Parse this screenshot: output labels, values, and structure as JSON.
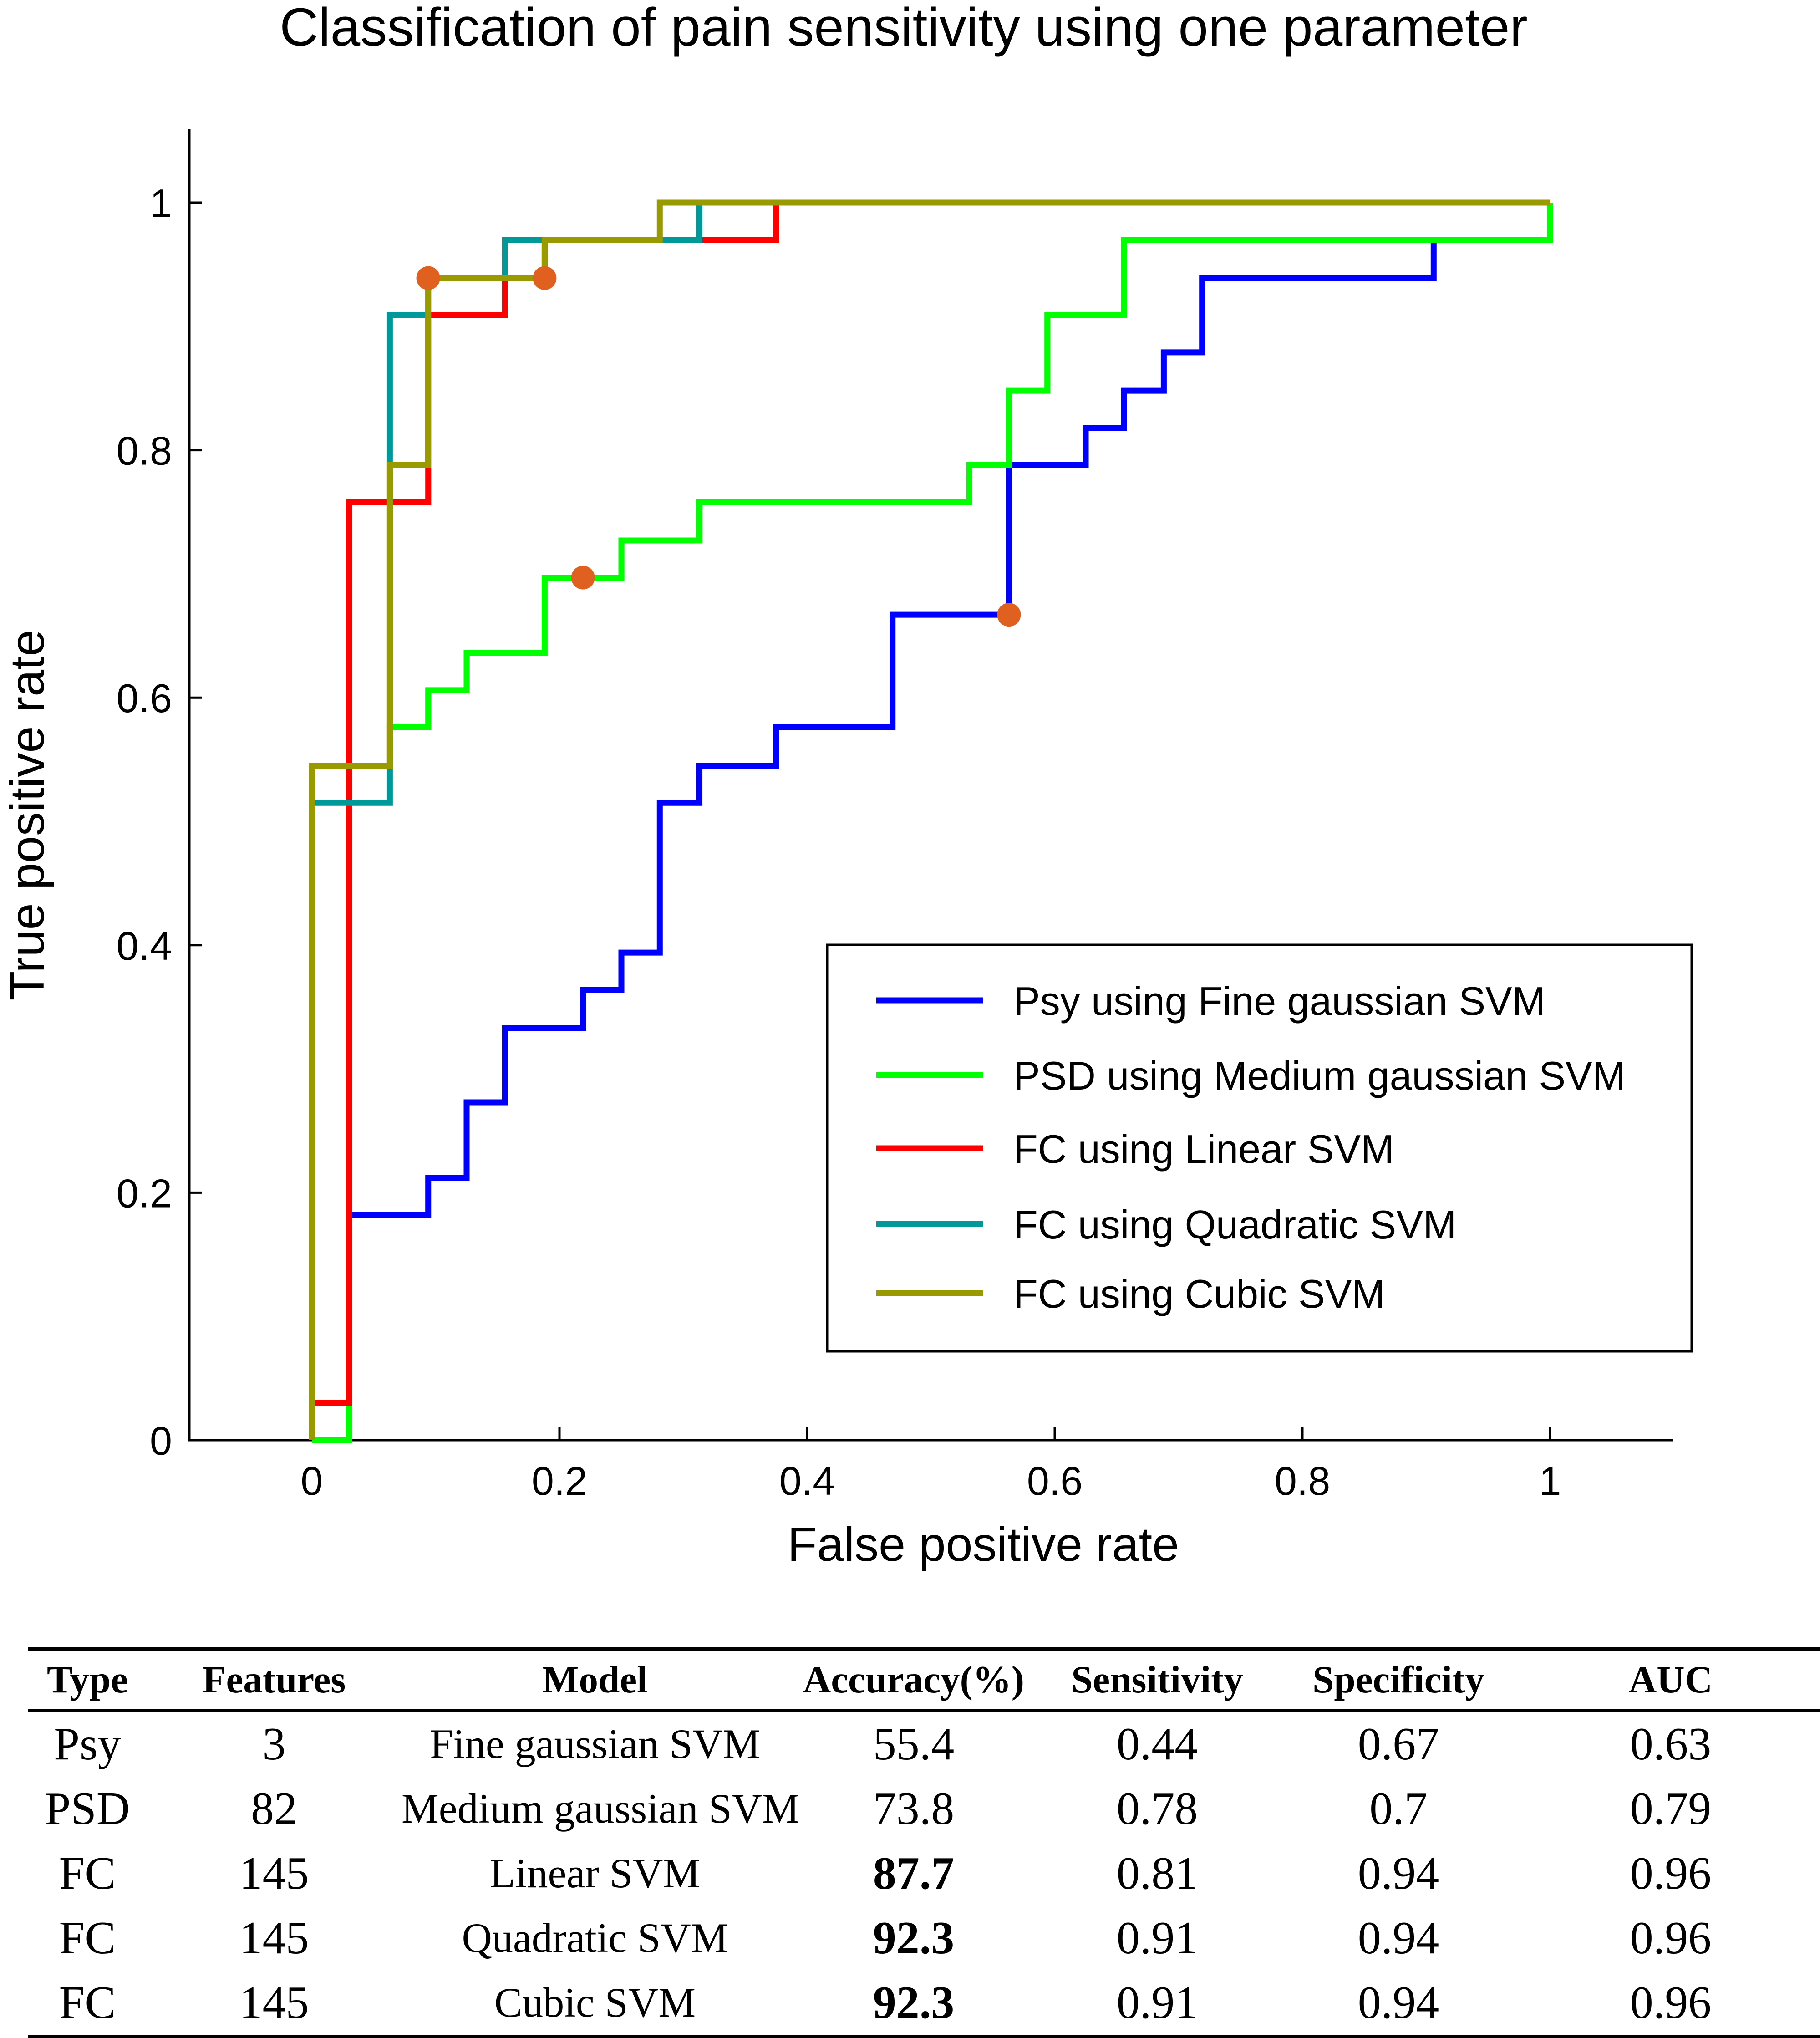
{
  "chart_data": {
    "type": "line",
    "title": "Classification of pain sensitivity using one parameter",
    "xlabel": "False positive rate",
    "ylabel": "True positive rate",
    "xlim": [
      -0.1,
      1.1
    ],
    "ylim": [
      0,
      1.05
    ],
    "xticks": [
      0,
      0.2,
      0.4,
      0.6,
      0.8,
      1
    ],
    "yticks": [
      0,
      0.2,
      0.4,
      0.6,
      0.8,
      1
    ],
    "xtick_labels": [
      "0",
      "0.2",
      "0.4",
      "0.6",
      "0.8",
      "1"
    ],
    "ytick_labels": [
      "0",
      "0.2",
      "0.4",
      "0.6",
      "0.8",
      "1"
    ],
    "grid": false,
    "legend_position": "lower-right",
    "series": [
      {
        "name": "Psy using Fine gaussian SVM",
        "color": "#0000ff",
        "points": [
          [
            0,
            0
          ],
          [
            0,
            0.03
          ],
          [
            0.03,
            0.03
          ],
          [
            0.03,
            0.182
          ],
          [
            0.094,
            0.182
          ],
          [
            0.094,
            0.212
          ],
          [
            0.125,
            0.212
          ],
          [
            0.125,
            0.273
          ],
          [
            0.156,
            0.273
          ],
          [
            0.156,
            0.333
          ],
          [
            0.219,
            0.333
          ],
          [
            0.219,
            0.364
          ],
          [
            0.25,
            0.364
          ],
          [
            0.25,
            0.394
          ],
          [
            0.281,
            0.394
          ],
          [
            0.281,
            0.515
          ],
          [
            0.313,
            0.515
          ],
          [
            0.313,
            0.545
          ],
          [
            0.375,
            0.545
          ],
          [
            0.375,
            0.576
          ],
          [
            0.469,
            0.576
          ],
          [
            0.469,
            0.667
          ],
          [
            0.563,
            0.667
          ],
          [
            0.563,
            0.788
          ],
          [
            0.625,
            0.788
          ],
          [
            0.625,
            0.818
          ],
          [
            0.656,
            0.818
          ],
          [
            0.656,
            0.848
          ],
          [
            0.688,
            0.848
          ],
          [
            0.688,
            0.879
          ],
          [
            0.719,
            0.879
          ],
          [
            0.719,
            0.939
          ],
          [
            0.906,
            0.939
          ],
          [
            0.906,
            0.97
          ],
          [
            1,
            0.97
          ],
          [
            1,
            1
          ]
        ],
        "operating_point": [
          0.563,
          0.667
        ]
      },
      {
        "name": "PSD using Medium gaussian SVM",
        "color": "#00ff00",
        "points": [
          [
            0,
            0
          ],
          [
            0.03,
            0
          ],
          [
            0.03,
            0.545
          ],
          [
            0.063,
            0.545
          ],
          [
            0.063,
            0.576
          ],
          [
            0.094,
            0.576
          ],
          [
            0.094,
            0.606
          ],
          [
            0.125,
            0.606
          ],
          [
            0.125,
            0.636
          ],
          [
            0.188,
            0.636
          ],
          [
            0.188,
            0.697
          ],
          [
            0.25,
            0.697
          ],
          [
            0.25,
            0.727
          ],
          [
            0.313,
            0.727
          ],
          [
            0.313,
            0.758
          ],
          [
            0.531,
            0.758
          ],
          [
            0.531,
            0.788
          ],
          [
            0.563,
            0.788
          ],
          [
            0.563,
            0.848
          ],
          [
            0.594,
            0.848
          ],
          [
            0.594,
            0.909
          ],
          [
            0.656,
            0.909
          ],
          [
            0.656,
            0.97
          ],
          [
            1,
            0.97
          ],
          [
            1,
            1
          ]
        ],
        "operating_point": [
          0.219,
          0.697
        ]
      },
      {
        "name": "FC using Linear SVM",
        "color": "#ff0000",
        "points": [
          [
            0,
            0
          ],
          [
            0,
            0.03
          ],
          [
            0.03,
            0.03
          ],
          [
            0.03,
            0.758
          ],
          [
            0.094,
            0.758
          ],
          [
            0.094,
            0.909
          ],
          [
            0.156,
            0.909
          ],
          [
            0.156,
            0.939
          ],
          [
            0.188,
            0.939
          ],
          [
            0.188,
            0.97
          ],
          [
            0.313,
            0.97
          ],
          [
            0.313,
            0.97
          ],
          [
            0.375,
            0.97
          ],
          [
            0.375,
            1
          ],
          [
            1,
            1
          ]
        ],
        "operating_point": [
          0.094,
          0.939
        ]
      },
      {
        "name": "FC using Quadratic SVM",
        "color": "#009999",
        "points": [
          [
            0,
            0
          ],
          [
            0,
            0.515
          ],
          [
            0.063,
            0.515
          ],
          [
            0.063,
            0.909
          ],
          [
            0.094,
            0.909
          ],
          [
            0.094,
            0.939
          ],
          [
            0.156,
            0.939
          ],
          [
            0.156,
            0.97
          ],
          [
            0.313,
            0.97
          ],
          [
            0.313,
            1
          ],
          [
            1,
            1
          ]
        ],
        "operating_point": [
          0.094,
          0.939
        ]
      },
      {
        "name": "FC using Cubic SVM",
        "color": "#999900",
        "points": [
          [
            0,
            0
          ],
          [
            0,
            0.545
          ],
          [
            0.063,
            0.545
          ],
          [
            0.063,
            0.788
          ],
          [
            0.094,
            0.788
          ],
          [
            0.094,
            0.939
          ],
          [
            0.188,
            0.939
          ],
          [
            0.188,
            0.97
          ],
          [
            0.281,
            0.97
          ],
          [
            0.281,
            1
          ],
          [
            1,
            1
          ]
        ],
        "operating_point": [
          0.188,
          0.939
        ]
      }
    ],
    "operating_point_color": "#e06020"
  },
  "table": {
    "headers": [
      "Type",
      "Features",
      "Model",
      "Accuracy(%)",
      "Sensitivity",
      "Specificity",
      "AUC"
    ],
    "rows": [
      [
        "Psy",
        "3",
        "Fine gaussian SVM",
        "55.4",
        "0.44",
        "0.67",
        "0.63"
      ],
      [
        "PSD",
        "82",
        "Medium gaussian SVM",
        "73.8",
        "0.78",
        "0.7",
        "0.79"
      ],
      [
        "FC",
        "145",
        "Linear SVM",
        "87.7",
        "0.81",
        "0.94",
        "0.96"
      ],
      [
        "FC",
        "145",
        "Quadratic SVM",
        "92.3",
        "0.91",
        "0.94",
        "0.96"
      ],
      [
        "FC",
        "145",
        "Cubic SVM",
        "92.3",
        "0.91",
        "0.94",
        "0.96"
      ]
    ],
    "bold_accuracy_rows": [
      2,
      3,
      4
    ]
  }
}
